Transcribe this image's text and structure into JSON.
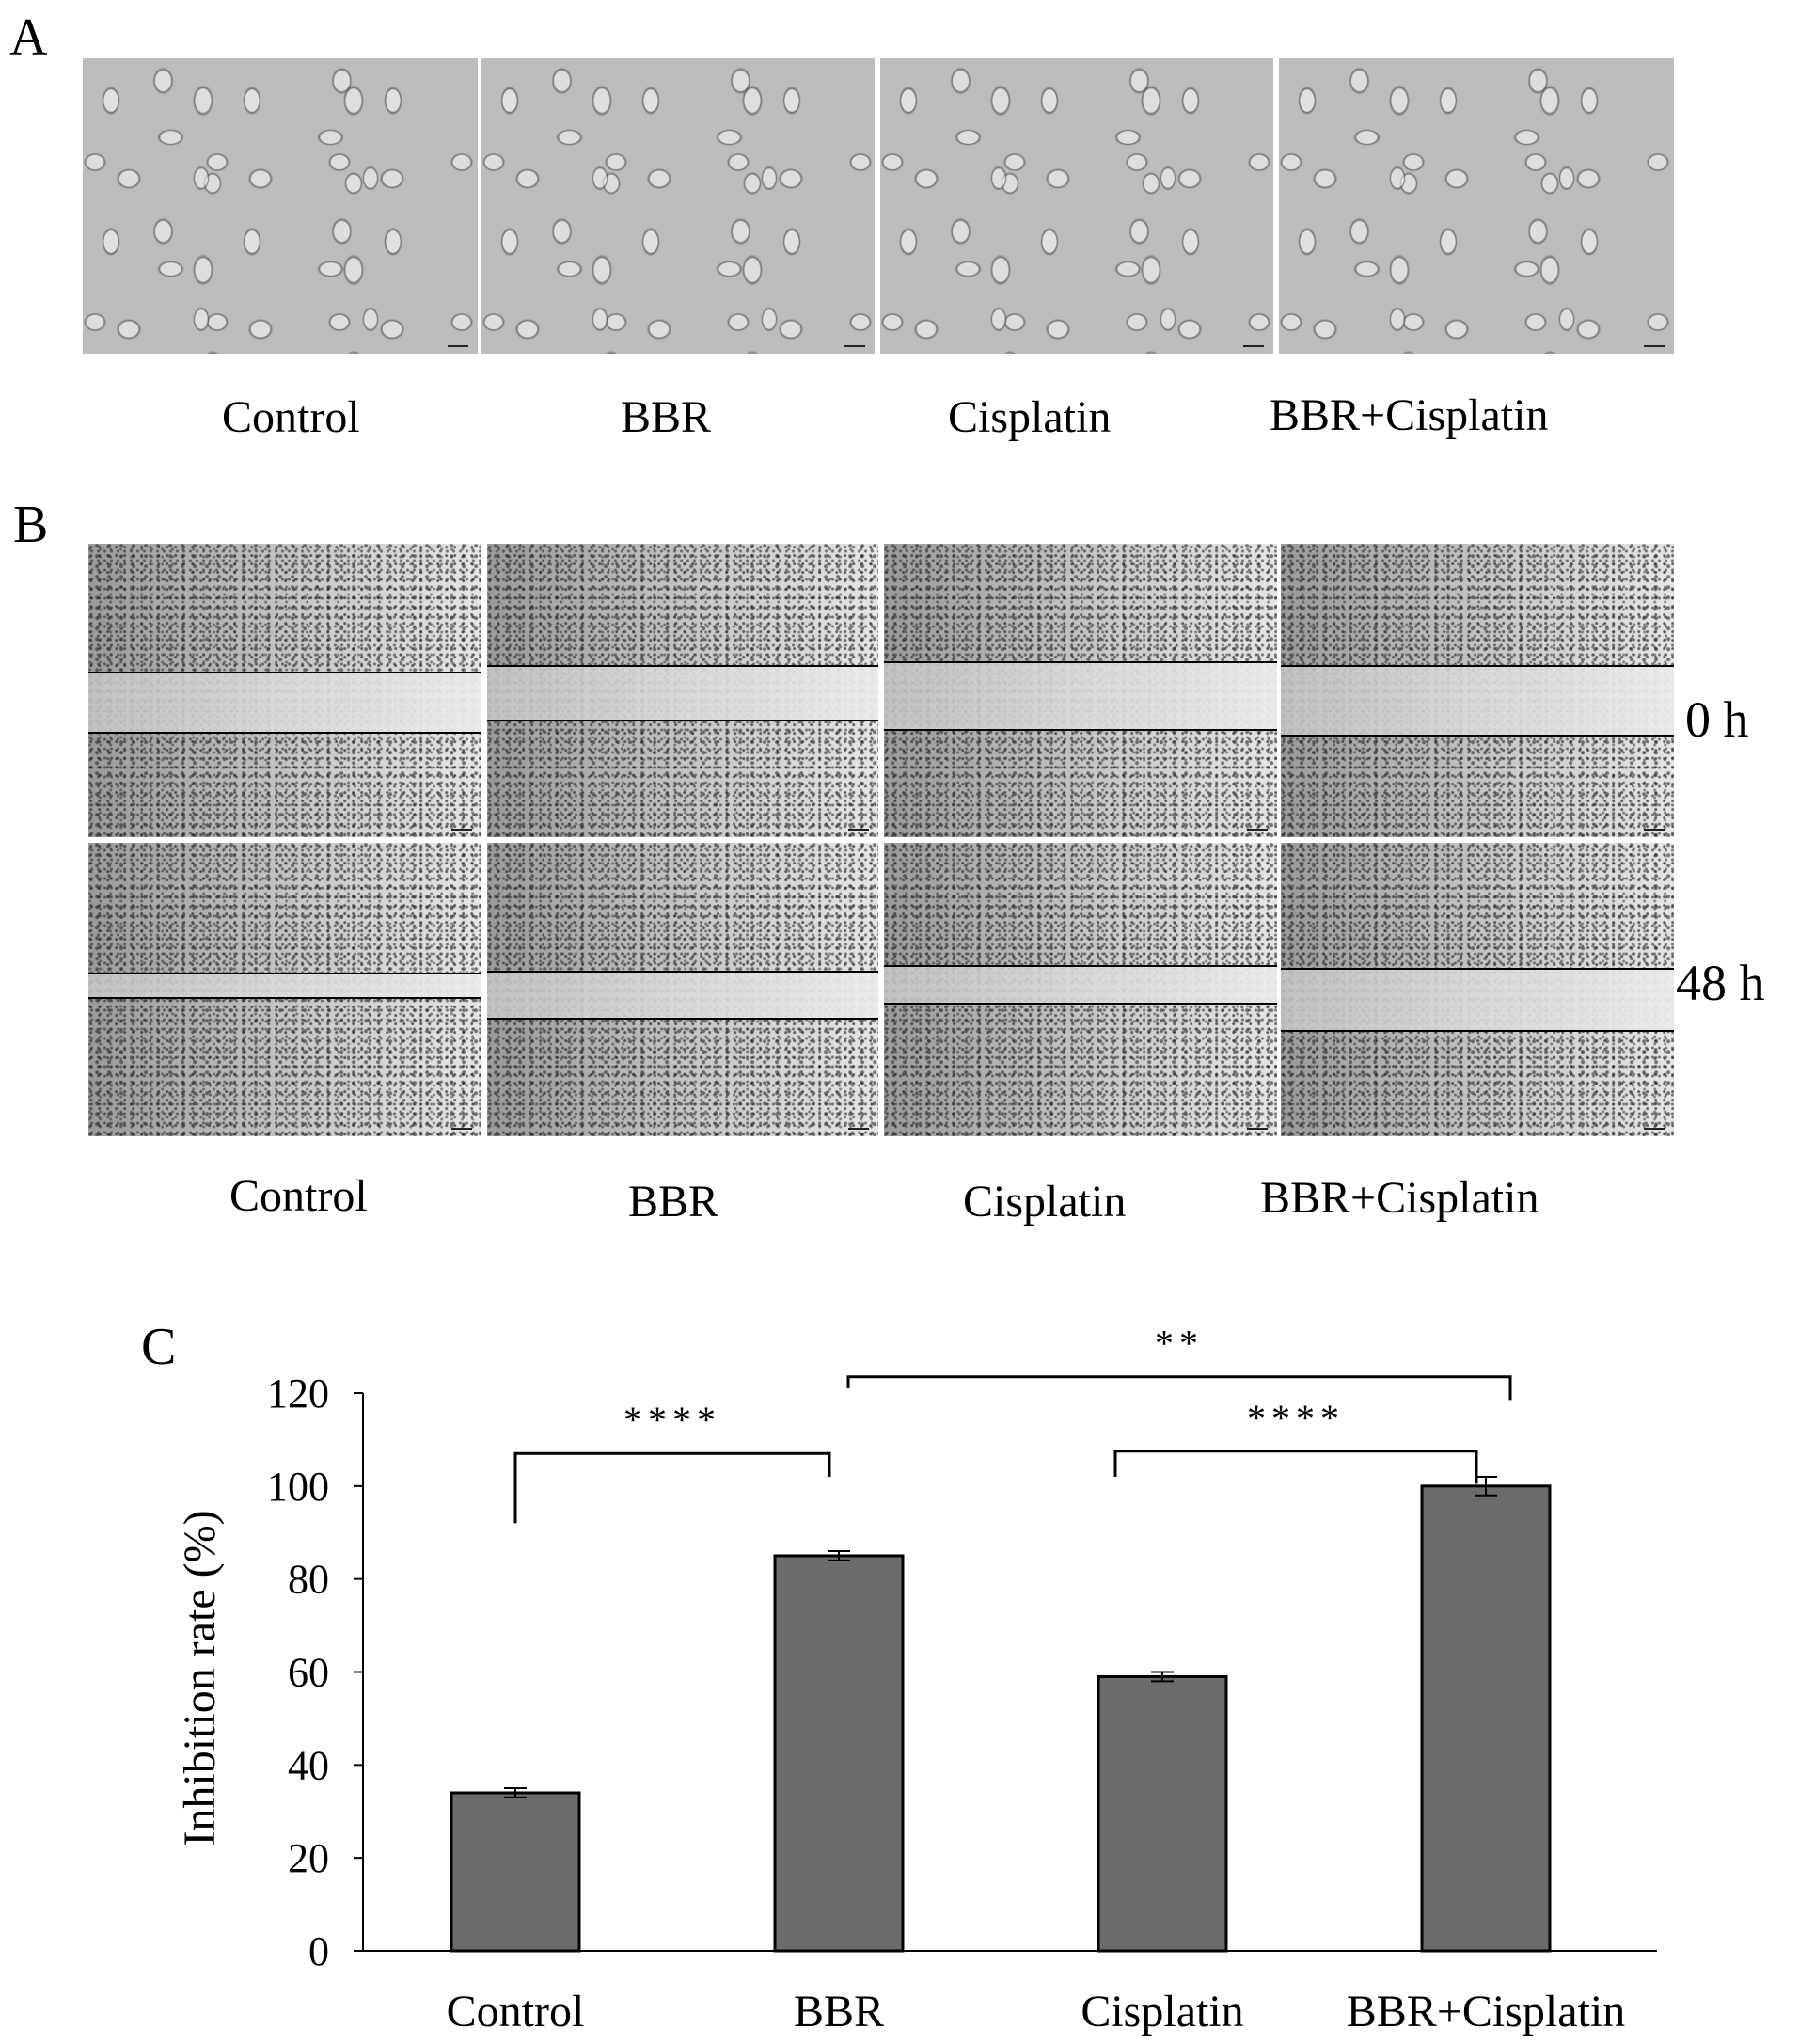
{
  "panels": {
    "a": {
      "letter": "A",
      "labels": [
        "Control",
        "BBR",
        "Cisplatin",
        "BBR+Cisplatin"
      ]
    },
    "b": {
      "letter": "B",
      "labels": [
        "Control",
        "BBR",
        "Cisplatin",
        "BBR+Cisplatin"
      ],
      "time_labels": [
        "0 h",
        "48 h"
      ]
    },
    "c": {
      "letter": "C"
    }
  },
  "chart_data": {
    "type": "bar",
    "categories": [
      "Control",
      "BBR",
      "Cisplatin",
      "BBR+Cisplatin"
    ],
    "values": [
      34,
      85,
      59,
      100
    ],
    "errors": [
      1,
      1,
      1,
      2
    ],
    "ylabel": "Inhibition rate (%)",
    "ylim": [
      0,
      120
    ],
    "yticks": [
      0,
      20,
      40,
      60,
      80,
      100,
      120
    ],
    "bar_color": "#6b6b6b",
    "significance": [
      {
        "from": "Control",
        "to": "BBR",
        "label": "****"
      },
      {
        "from": "Cisplatin",
        "to": "BBR+Cisplatin",
        "label": "****"
      },
      {
        "from": "BBR",
        "to": "BBR+Cisplatin",
        "label": "**"
      }
    ]
  }
}
